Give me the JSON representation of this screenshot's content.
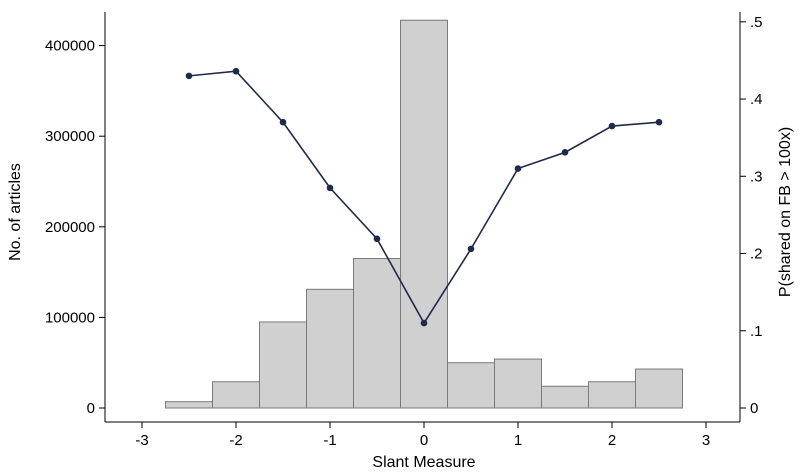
{
  "chart_data": {
    "type": "bar+line",
    "title": "",
    "xlabel": "Slant Measure",
    "ylabel_left": "No. of articles",
    "ylabel_right": "P(shared on FB > 100x)",
    "xlim": [
      -3,
      3
    ],
    "ylim_left": [
      0,
      430000
    ],
    "ylim_right": [
      0,
      0.5
    ],
    "x_ticks": [
      -3,
      -2,
      -1,
      0,
      1,
      2,
      3
    ],
    "x_tick_labels": [
      "-3",
      "-2",
      "-1",
      "0",
      "1",
      "2",
      "3"
    ],
    "y_left_ticks": [
      0,
      100000,
      200000,
      300000,
      400000
    ],
    "y_left_tick_labels": [
      "0",
      "100000",
      "200000",
      "300000",
      "400000"
    ],
    "y_right_ticks": [
      0,
      0.1,
      0.2,
      0.3,
      0.4,
      0.5
    ],
    "y_right_tick_labels": [
      "0",
      ".1",
      ".2",
      ".3",
      ".4",
      ".5"
    ],
    "grid": false,
    "legend": "none",
    "histogram": {
      "bin_width": 0.5,
      "bin_left_edges": [
        -2.75,
        -2.25,
        -1.75,
        -1.25,
        -0.75,
        -0.25,
        0.25,
        0.75,
        1.25,
        1.75,
        2.25
      ],
      "values": [
        7000,
        29000,
        95000,
        131000,
        165000,
        428000,
        50000,
        54000,
        24000,
        29000,
        43000
      ],
      "fill_color": "#d0d0d0",
      "edge_color": "#7a7a7a"
    },
    "line": {
      "axis": "right",
      "x": [
        -2.5,
        -2,
        -1.5,
        -1,
        -0.5,
        0,
        0.5,
        1,
        1.5,
        2,
        2.5
      ],
      "y": [
        0.43,
        0.436,
        0.37,
        0.285,
        0.219,
        0.11,
        0.206,
        0.31,
        0.331,
        0.365,
        0.37
      ],
      "color": "#1f2a4a"
    }
  }
}
